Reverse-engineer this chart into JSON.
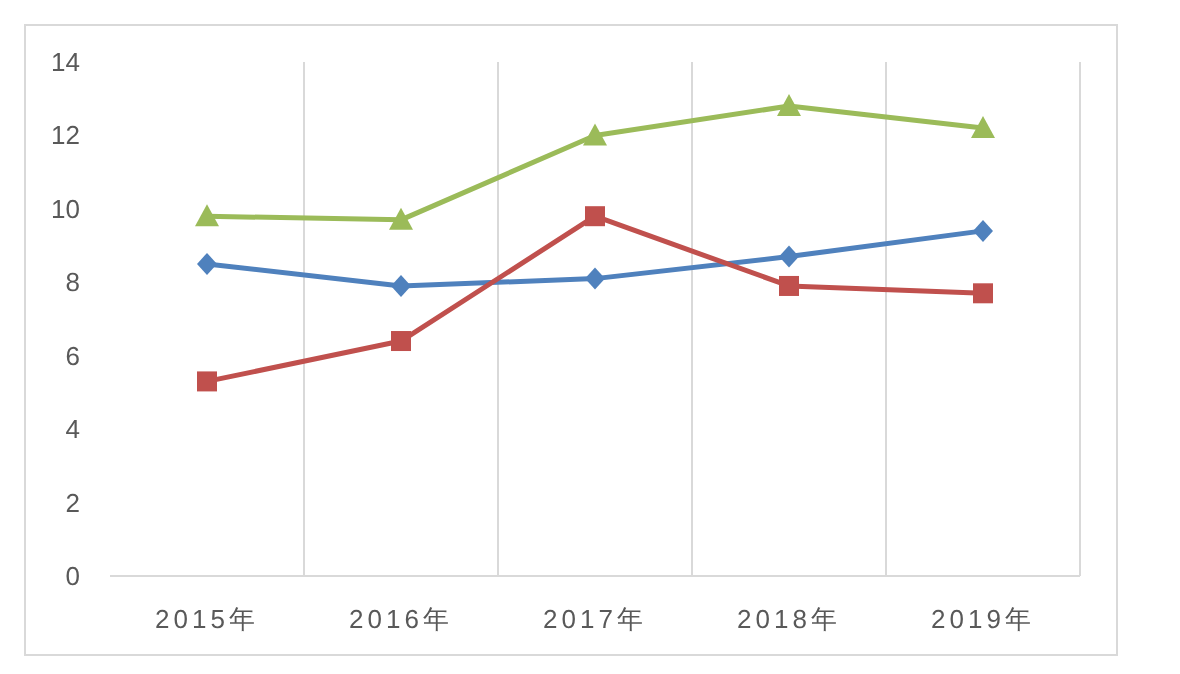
{
  "chart_data": {
    "type": "line",
    "categories": [
      "2015年",
      "2016年",
      "2017年",
      "2018年",
      "2019年"
    ],
    "series": [
      {
        "color": "#4f81bd",
        "marker": "diamond",
        "values": [
          8.5,
          7.9,
          8.1,
          8.7,
          9.4
        ]
      },
      {
        "color": "#c0504d",
        "marker": "square",
        "values": [
          5.3,
          6.4,
          9.8,
          7.9,
          7.7
        ]
      },
      {
        "color": "#9bbb59",
        "marker": "triangle",
        "values": [
          9.8,
          9.7,
          12.0,
          12.8,
          12.2
        ]
      }
    ],
    "ylim": [
      0,
      14
    ],
    "yticks": [
      0,
      2,
      4,
      6,
      8,
      10,
      12,
      14
    ],
    "grid": "x"
  }
}
